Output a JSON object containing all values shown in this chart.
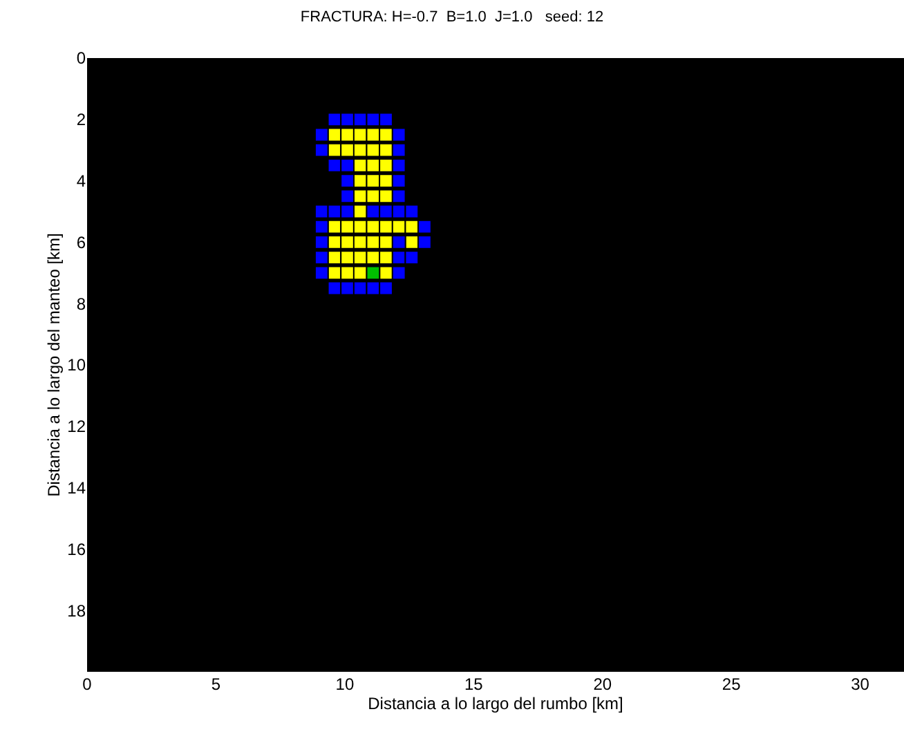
{
  "chart_data": {
    "type": "scatter",
    "title": "FRACTURA: H=-0.7  B=1.0  J=1.0   seed: 12",
    "xlabel": "Distancia a lo largo del rumbo [km]",
    "ylabel": "Distancia a lo largo del manteo [km]",
    "xlim": [
      0,
      31.7
    ],
    "ylim": [
      20,
      0
    ],
    "xticks": [
      0,
      5,
      10,
      15,
      20,
      25,
      30
    ],
    "yticks": [
      0,
      2,
      4,
      6,
      8,
      10,
      12,
      14,
      16,
      18
    ],
    "grid": false,
    "marker": "square",
    "series": [
      {
        "color": "#ffff00",
        "x": [
          9.6,
          10.1,
          10.6,
          11.1,
          11.6,
          9.6,
          10.1,
          10.6,
          11.1,
          11.6,
          10.6,
          11.1,
          11.6,
          10.6,
          11.1,
          11.6,
          10.6,
          11.1,
          11.6,
          10.6,
          9.6,
          10.1,
          10.6,
          11.1,
          11.6,
          12.1,
          12.6,
          9.6,
          10.1,
          10.6,
          11.1,
          11.6,
          12.6,
          9.6,
          10.1,
          10.6,
          11.1,
          11.6,
          9.6,
          10.1,
          10.6,
          11.6
        ],
        "values": [
          2.5,
          2.5,
          2.5,
          2.5,
          2.5,
          3,
          3,
          3,
          3,
          3,
          3.5,
          3.5,
          3.5,
          4,
          4,
          4,
          4.5,
          4.5,
          4.5,
          5,
          5.5,
          5.5,
          5.5,
          5.5,
          5.5,
          5.5,
          5.5,
          6,
          6,
          6,
          6,
          6,
          6,
          6.5,
          6.5,
          6.5,
          6.5,
          6.5,
          7,
          7,
          7,
          7
        ]
      },
      {
        "color": "#0000ff",
        "x": [
          9.6,
          10.1,
          10.6,
          11.1,
          11.6,
          9.1,
          12.1,
          9.1,
          12.1,
          9.6,
          10.1,
          12.1,
          10.1,
          12.1,
          10.1,
          12.1,
          9.1,
          9.6,
          10.1,
          11.1,
          11.6,
          12.1,
          12.6,
          9.1,
          13.1,
          9.1,
          12.1,
          13.1,
          9.1,
          12.1,
          12.6,
          9.1,
          12.1,
          9.6,
          10.1,
          10.6,
          11.1,
          11.6
        ],
        "values": [
          2,
          2,
          2,
          2,
          2,
          2.5,
          2.5,
          3,
          3,
          3.5,
          3.5,
          3.5,
          4,
          4,
          4.5,
          4.5,
          5,
          5,
          5,
          5,
          5,
          5,
          5,
          5.5,
          5.5,
          6,
          6,
          6,
          6.5,
          6.5,
          6.5,
          7,
          7,
          7.5,
          7.5,
          7.5,
          7.5,
          7.5
        ]
      },
      {
        "color": "#00c000",
        "x": [
          11.1
        ],
        "values": [
          7
        ]
      }
    ]
  }
}
